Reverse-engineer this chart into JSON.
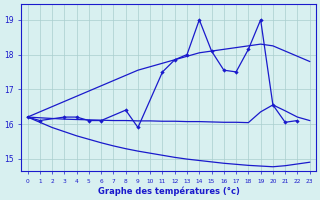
{
  "x_all": [
    0,
    1,
    2,
    3,
    4,
    5,
    6,
    7,
    8,
    9,
    10,
    11,
    12,
    13,
    14,
    15,
    16,
    17,
    18,
    19,
    20,
    21,
    22,
    23
  ],
  "line_upper": [
    16.2,
    16.35,
    16.5,
    16.65,
    16.8,
    16.95,
    17.1,
    17.25,
    17.4,
    17.55,
    17.65,
    17.75,
    17.85,
    17.95,
    18.05,
    18.1,
    18.15,
    18.2,
    18.25,
    18.3,
    18.25,
    18.1,
    17.95,
    17.8
  ],
  "line_lower": [
    16.2,
    16.05,
    15.9,
    15.78,
    15.66,
    15.56,
    15.46,
    15.37,
    15.29,
    15.22,
    15.16,
    15.1,
    15.04,
    14.99,
    14.95,
    14.91,
    14.87,
    14.84,
    14.81,
    14.79,
    14.77,
    14.8,
    14.85,
    14.9
  ],
  "line_mid": [
    16.2,
    16.18,
    16.16,
    16.14,
    16.13,
    16.12,
    16.11,
    16.1,
    16.1,
    16.09,
    16.09,
    16.08,
    16.08,
    16.07,
    16.07,
    16.06,
    16.05,
    16.05,
    16.04,
    16.35,
    16.55,
    16.38,
    16.2,
    16.1
  ],
  "jagged_x": [
    0,
    1,
    3,
    4,
    5,
    6,
    8,
    9,
    11,
    12,
    13,
    14,
    15,
    16,
    17,
    18,
    19,
    20,
    21,
    22
  ],
  "jagged_y": [
    16.2,
    16.1,
    16.2,
    16.2,
    16.1,
    16.1,
    16.4,
    15.9,
    17.5,
    17.85,
    18.0,
    19.0,
    18.1,
    17.55,
    17.5,
    18.15,
    19.0,
    16.55,
    16.05,
    16.1
  ],
  "color": "#1a1acc",
  "bg_color": "#d8f0f0",
  "grid_color": "#aacece",
  "ylabel_ticks": [
    15,
    16,
    17,
    18,
    19
  ],
  "xlabel_ticks": [
    0,
    1,
    2,
    3,
    4,
    5,
    6,
    7,
    8,
    9,
    10,
    11,
    12,
    13,
    14,
    15,
    16,
    17,
    18,
    19,
    20,
    21,
    22,
    23
  ],
  "xlabel": "Graphe des températures (°c)",
  "ylim": [
    14.65,
    19.45
  ],
  "xlim": [
    -0.5,
    23.5
  ]
}
